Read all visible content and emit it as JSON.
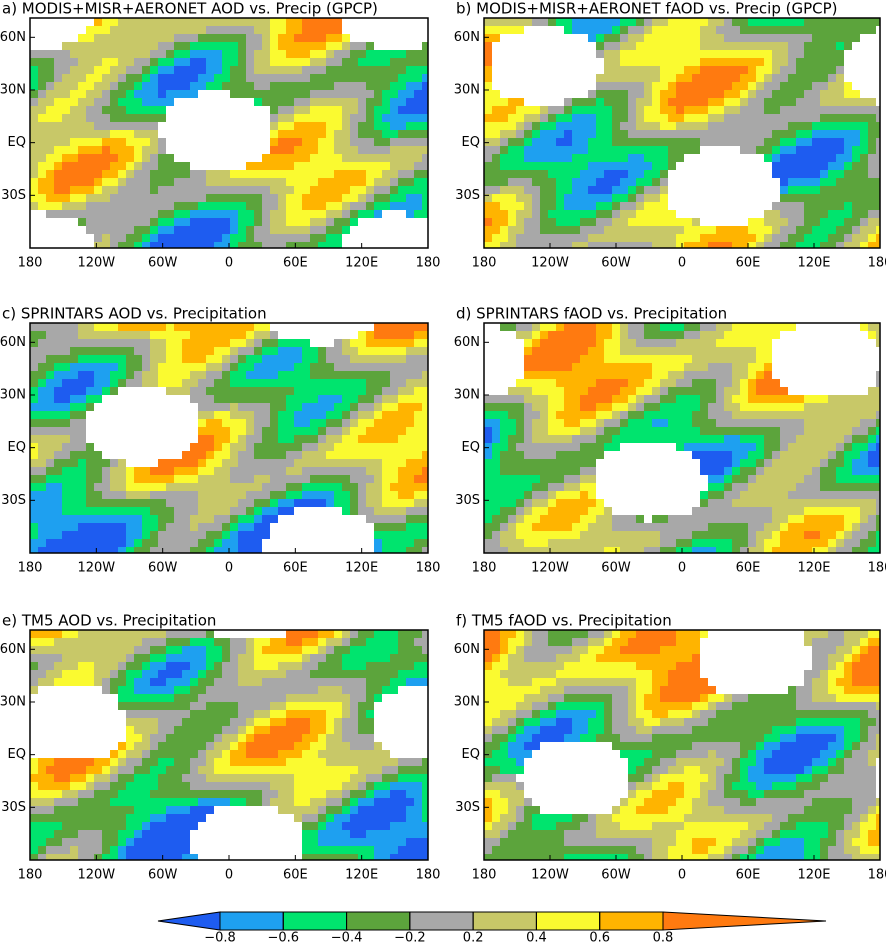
{
  "panels": [
    {
      "title": "a) MODIS+MISR+AERONET AOD vs. Precip (GPCP)"
    },
    {
      "title": "b) MODIS+MISR+AERONET fAOD vs. Precip (GPCP)"
    },
    {
      "title": "c) SPRINTARS AOD vs. Precipitation"
    },
    {
      "title": "d) SPRINTARS fAOD vs. Precipitation"
    },
    {
      "title": "e) TM5 AOD vs. Precipitation"
    },
    {
      "title": "f) TM5 fAOD vs. Precipitation"
    }
  ],
  "axes": {
    "xlim": [
      -180,
      180
    ],
    "ylim": [
      -60,
      71
    ],
    "xticks": [
      {
        "value": -180,
        "label": "180"
      },
      {
        "value": -120,
        "label": "120W"
      },
      {
        "value": -60,
        "label": "60W"
      },
      0,
      {
        "value": 60,
        "label": "60E"
      },
      {
        "value": 120,
        "label": "120E"
      },
      180
    ],
    "yticks": [
      {
        "value": 60,
        "label": "60N"
      },
      {
        "value": 30,
        "label": "30N"
      },
      {
        "value": 0,
        "label": "EQ"
      },
      {
        "value": -30,
        "label": "30S"
      }
    ]
  },
  "colorbar": {
    "levels": [
      {
        "value": -0.8,
        "label": "−0.8"
      },
      {
        "value": -0.6,
        "label": "−0.6"
      },
      {
        "value": -0.4,
        "label": "−0.4"
      },
      {
        "value": -0.2,
        "label": "−0.2"
      },
      0.2,
      0.4,
      0.6,
      0.8
    ],
    "colors": [
      "#1e5cf0",
      "#1ea0f0",
      "#00e46e",
      "#5ca43c",
      "#a8a8a8",
      "#c8c868",
      "#fafa30",
      "#ffb400",
      "#ff7a10"
    ]
  }
}
